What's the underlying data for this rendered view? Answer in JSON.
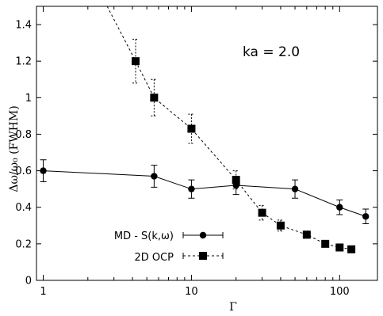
{
  "chart_data": {
    "type": "line",
    "annotation": "ka = 2.0",
    "xlabel": "Γ",
    "ylabel": "Δω/ω₀  (FWHM)",
    "xscale": "log",
    "xlim": [
      0.9,
      180
    ],
    "ylim": [
      0,
      1.5
    ],
    "x_ticks": [
      1,
      10,
      100
    ],
    "x_tick_labels": [
      "1",
      "10",
      "100"
    ],
    "y_ticks": [
      0,
      0.2,
      0.4,
      0.6,
      0.8,
      1,
      1.2,
      1.4
    ],
    "y_tick_labels": [
      "0",
      "0.2",
      "0.4",
      "0.6",
      "0.8",
      "1",
      "1.2",
      "1.4"
    ],
    "legend_position": "bottom-left",
    "series": [
      {
        "name": "MD - S(k,ω)",
        "style": "solid",
        "marker": "circle",
        "x": [
          1,
          5.6,
          10,
          20,
          50,
          100,
          150
        ],
        "y": [
          0.6,
          0.57,
          0.5,
          0.52,
          0.5,
          0.4,
          0.35
        ],
        "err": [
          0.06,
          0.06,
          0.05,
          0.05,
          0.05,
          0.04,
          0.04
        ]
      },
      {
        "name": "2D OCP",
        "style": "dashed",
        "marker": "square",
        "x": [
          4.2,
          5.6,
          10,
          20,
          30,
          40,
          60,
          80,
          100,
          120
        ],
        "y": [
          1.2,
          1.0,
          0.83,
          0.55,
          0.37,
          0.3,
          0.25,
          0.2,
          0.18,
          0.17
        ],
        "err": [
          0.12,
          0.1,
          0.08,
          0.05,
          0.04,
          0.03,
          0.02,
          0.01,
          0.01,
          0.01
        ],
        "line_extension_start": [
          2.7,
          1.5
        ]
      }
    ]
  }
}
